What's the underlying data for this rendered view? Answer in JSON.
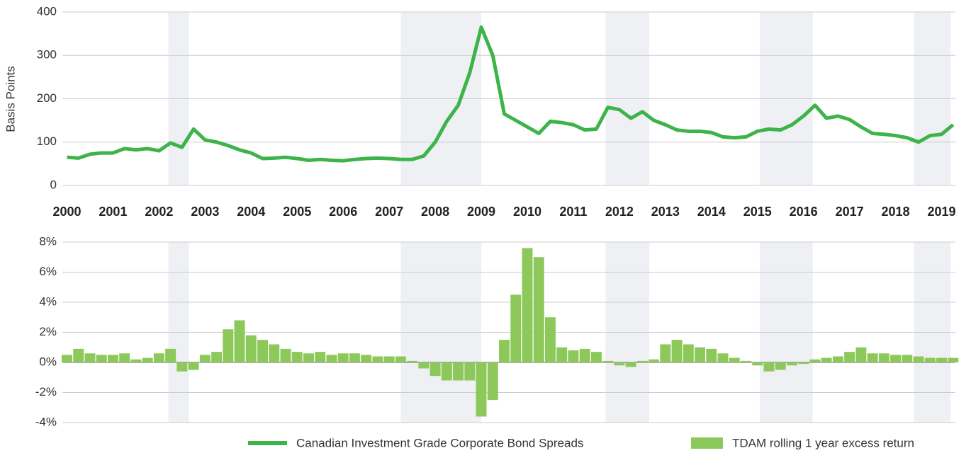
{
  "chart_data": [
    {
      "type": "line",
      "ylabel": "Basis Points",
      "xlim": [
        1999.9,
        2019.3
      ],
      "xticks": [
        2000,
        2001,
        2002,
        2003,
        2004,
        2005,
        2006,
        2007,
        2008,
        2009,
        2010,
        2011,
        2012,
        2013,
        2014,
        2015,
        2016,
        2017,
        2018,
        2019
      ],
      "ylim": [
        0,
        400
      ],
      "yticks": [
        0,
        100,
        200,
        300,
        400
      ],
      "grid": true,
      "shaded": [
        [
          2002.2,
          2002.65
        ],
        [
          2007.25,
          2009.0
        ],
        [
          2011.7,
          2012.65
        ],
        [
          2015.05,
          2016.2
        ],
        [
          2018.4,
          2019.2
        ]
      ],
      "x": [
        2000,
        2000.25,
        2000.5,
        2000.75,
        2001,
        2001.25,
        2001.5,
        2001.75,
        2002,
        2002.25,
        2002.5,
        2002.75,
        2003,
        2003.25,
        2003.5,
        2003.75,
        2004,
        2004.25,
        2004.5,
        2004.75,
        2005,
        2005.25,
        2005.5,
        2005.75,
        2006,
        2006.25,
        2006.5,
        2006.75,
        2007,
        2007.25,
        2007.5,
        2007.75,
        2008,
        2008.25,
        2008.5,
        2008.75,
        2009,
        2009.25,
        2009.5,
        2009.75,
        2010,
        2010.25,
        2010.5,
        2010.75,
        2011,
        2011.25,
        2011.5,
        2011.75,
        2012,
        2012.25,
        2012.5,
        2012.75,
        2013,
        2013.25,
        2013.5,
        2013.75,
        2014,
        2014.25,
        2014.5,
        2014.75,
        2015,
        2015.25,
        2015.5,
        2015.75,
        2016,
        2016.25,
        2016.5,
        2016.75,
        2017,
        2017.25,
        2017.5,
        2017.75,
        2018,
        2018.25,
        2018.5,
        2018.75,
        2019,
        2019.25
      ],
      "series": [
        {
          "name": "Canadian Investment Grade Corporate Bond Spreads",
          "color": "#3cb44a",
          "values": [
            65,
            63,
            72,
            75,
            75,
            85,
            82,
            85,
            80,
            98,
            88,
            130,
            105,
            100,
            92,
            82,
            75,
            62,
            63,
            65,
            62,
            58,
            60,
            58,
            57,
            60,
            62,
            63,
            62,
            60,
            60,
            68,
            100,
            148,
            185,
            260,
            365,
            300,
            165,
            150,
            135,
            120,
            148,
            145,
            140,
            128,
            130,
            180,
            175,
            155,
            170,
            150,
            140,
            128,
            125,
            125,
            122,
            112,
            110,
            112,
            125,
            130,
            128,
            140,
            160,
            185,
            155,
            160,
            152,
            135,
            120,
            118,
            115,
            110,
            100,
            115,
            118,
            140
          ]
        }
      ]
    },
    {
      "type": "bar",
      "xlim": [
        1999.9,
        2019.3
      ],
      "ylim": [
        -4,
        8
      ],
      "yticks": [
        {
          "value": -4,
          "label": "-4%"
        },
        {
          "value": -2,
          "label": "-2%"
        },
        {
          "value": 0,
          "label": "0%"
        },
        {
          "value": 2,
          "label": "2%"
        },
        {
          "value": 4,
          "label": "4%"
        },
        {
          "value": 6,
          "label": "6%"
        },
        {
          "value": 8,
          "label": "8%"
        }
      ],
      "grid": true,
      "shaded": [
        [
          2002.2,
          2002.65
        ],
        [
          2007.25,
          2009.0
        ],
        [
          2011.7,
          2012.65
        ],
        [
          2015.05,
          2016.2
        ],
        [
          2018.4,
          2019.2
        ]
      ],
      "x": [
        2000,
        2000.25,
        2000.5,
        2000.75,
        2001,
        2001.25,
        2001.5,
        2001.75,
        2002,
        2002.25,
        2002.5,
        2002.75,
        2003,
        2003.25,
        2003.5,
        2003.75,
        2004,
        2004.25,
        2004.5,
        2004.75,
        2005,
        2005.25,
        2005.5,
        2005.75,
        2006,
        2006.25,
        2006.5,
        2006.75,
        2007,
        2007.25,
        2007.5,
        2007.75,
        2008,
        2008.25,
        2008.5,
        2008.75,
        2009,
        2009.25,
        2009.5,
        2009.75,
        2010,
        2010.25,
        2010.5,
        2010.75,
        2011,
        2011.25,
        2011.5,
        2011.75,
        2012,
        2012.25,
        2012.5,
        2012.75,
        2013,
        2013.25,
        2013.5,
        2013.75,
        2014,
        2014.25,
        2014.5,
        2014.75,
        2015,
        2015.25,
        2015.5,
        2015.75,
        2016,
        2016.25,
        2016.5,
        2016.75,
        2017,
        2017.25,
        2017.5,
        2017.75,
        2018,
        2018.25,
        2018.5,
        2018.75,
        2019,
        2019.25
      ],
      "series": [
        {
          "name": "TDAM rolling 1 year excess return",
          "color": "#8dc85a",
          "values": [
            0.5,
            0.9,
            0.6,
            0.5,
            0.5,
            0.6,
            0.2,
            0.3,
            0.6,
            0.9,
            -0.6,
            -0.5,
            0.5,
            0.7,
            2.2,
            2.8,
            1.8,
            1.5,
            1.2,
            0.9,
            0.7,
            0.6,
            0.7,
            0.5,
            0.6,
            0.6,
            0.5,
            0.4,
            0.4,
            0.4,
            0.1,
            -0.4,
            -0.9,
            -1.2,
            -1.2,
            -1.2,
            -3.6,
            -2.5,
            1.5,
            4.5,
            7.6,
            7.0,
            3.0,
            1.0,
            0.8,
            0.9,
            0.7,
            0.1,
            -0.2,
            -0.3,
            0.1,
            0.2,
            1.2,
            1.5,
            1.2,
            1.0,
            0.9,
            0.6,
            0.3,
            0.1,
            -0.2,
            -0.6,
            -0.5,
            -0.2,
            -0.1,
            0.2,
            0.3,
            0.4,
            0.7,
            1.0,
            0.6,
            0.6,
            0.5,
            0.5,
            0.4,
            0.3,
            0.3,
            0.3
          ]
        }
      ]
    }
  ]
}
